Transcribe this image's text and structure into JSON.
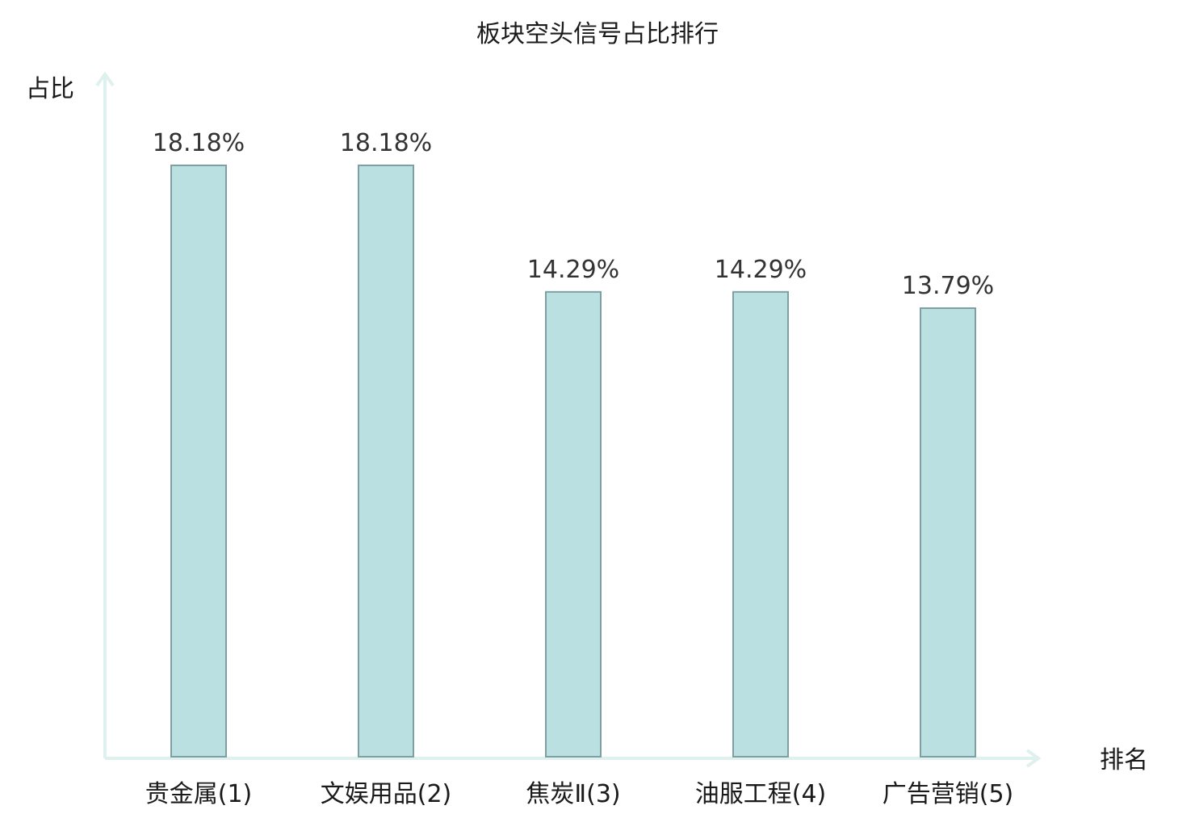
{
  "chart_data": {
    "type": "bar",
    "title": "板块空头信号占比排行",
    "ylabel": "占比",
    "xlabel": "排名",
    "categories": [
      "贵金属(1)",
      "文娱用品(2)",
      "焦炭Ⅱ(3)",
      "油服工程(4)",
      "广告营销(5)"
    ],
    "values": [
      18.18,
      18.18,
      14.29,
      14.29,
      13.79
    ],
    "value_labels": [
      "18.18%",
      "18.18%",
      "14.29%",
      "14.29%",
      "13.79%"
    ],
    "ylim": [
      0,
      20
    ],
    "grid": false,
    "legend": "none",
    "highlight_index": 0
  },
  "colors": {
    "bar_fill": "#bbe0e2",
    "bar_stroke": "#7fa0a2",
    "axis": "#dff1ef",
    "highlight_label": "#e0191b",
    "text": "#1a1a1a",
    "value_text": "#333333"
  }
}
